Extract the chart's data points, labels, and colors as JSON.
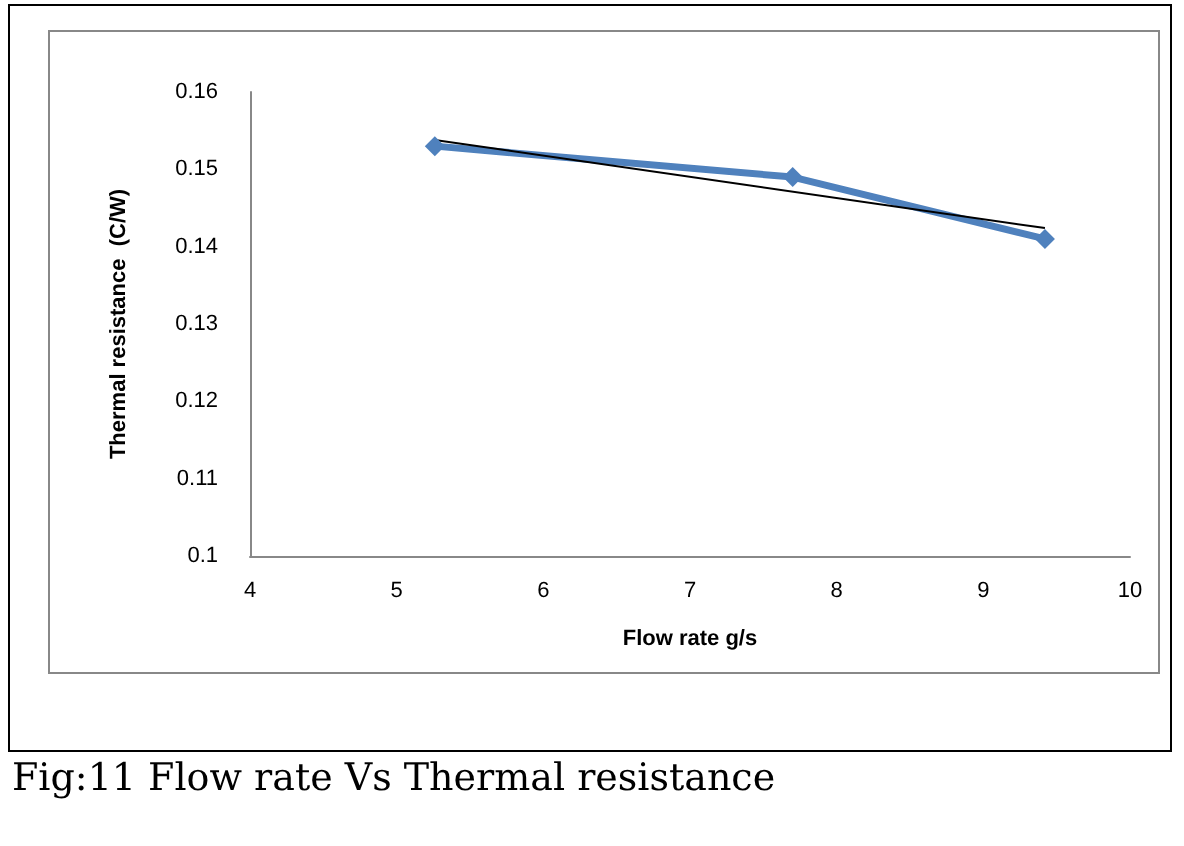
{
  "chart_data": {
    "type": "line",
    "xlabel": "Flow rate g/s",
    "ylabel": "Thermal resistance  (C/W)",
    "annotations": [
      "Fig:11 Flow rate Vs Thermal resistance"
    ],
    "x": [
      5.26,
      7.7,
      9.42
    ],
    "series": [
      {
        "color": "#4f81bd",
        "values": [
          0.153,
          0.149,
          0.141
        ],
        "marker": "diamond"
      },
      {
        "color": "#000000",
        "x": [
          5.26,
          9.42
        ],
        "values": [
          0.1538,
          0.1424
        ],
        "marker": "none"
      }
    ],
    "xlim": [
      4,
      10
    ],
    "xticks": [
      4,
      5,
      6,
      7,
      8,
      9,
      10
    ],
    "ylim": [
      0.1,
      0.16
    ],
    "yticks": [
      0.1,
      0.11,
      0.12,
      0.13,
      0.14,
      0.15,
      0.16
    ],
    "grid": false
  }
}
